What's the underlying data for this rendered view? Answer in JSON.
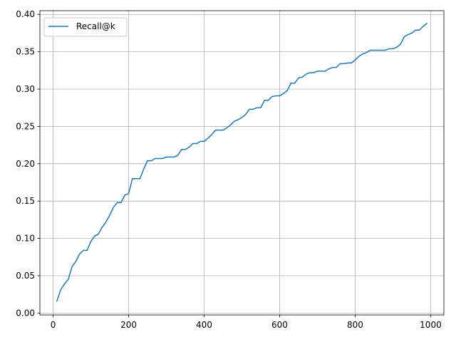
{
  "chart_data": {
    "type": "line",
    "title": "",
    "xlabel": "",
    "ylabel": "",
    "xlim": [
      -35,
      1035
    ],
    "ylim": [
      -0.0025,
      0.405
    ],
    "xticks": [
      0,
      200,
      400,
      600,
      800,
      1000
    ],
    "xtick_labels": [
      "0",
      "200",
      "400",
      "600",
      "800",
      "1000"
    ],
    "yticks": [
      0.0,
      0.05,
      0.1,
      0.15,
      0.2,
      0.25,
      0.3,
      0.35,
      0.4
    ],
    "ytick_labels": [
      "0.00",
      "0.05",
      "0.10",
      "0.15",
      "0.20",
      "0.25",
      "0.30",
      "0.35",
      "0.40"
    ],
    "grid": true,
    "legend_position": "top-left",
    "series": [
      {
        "name": "Recall@k",
        "color": "#1f77b4",
        "x": [
          10,
          20,
          30,
          40,
          50,
          60,
          70,
          80,
          90,
          100,
          110,
          120,
          130,
          140,
          150,
          160,
          170,
          180,
          190,
          200,
          210,
          220,
          230,
          240,
          250,
          260,
          270,
          280,
          290,
          300,
          310,
          320,
          330,
          340,
          350,
          360,
          370,
          380,
          390,
          400,
          410,
          420,
          430,
          440,
          450,
          460,
          470,
          480,
          490,
          500,
          510,
          520,
          530,
          540,
          550,
          560,
          570,
          580,
          590,
          600,
          610,
          620,
          630,
          640,
          650,
          660,
          670,
          680,
          690,
          700,
          710,
          720,
          730,
          740,
          750,
          760,
          770,
          780,
          790,
          800,
          810,
          820,
          830,
          840,
          850,
          860,
          870,
          880,
          890,
          900,
          910,
          920,
          930,
          940,
          950,
          960,
          970,
          980,
          990
        ],
        "y": [
          0.016,
          0.031,
          0.039,
          0.045,
          0.062,
          0.069,
          0.079,
          0.084,
          0.084,
          0.096,
          0.103,
          0.106,
          0.115,
          0.122,
          0.131,
          0.142,
          0.148,
          0.148,
          0.158,
          0.16,
          0.18,
          0.18,
          0.18,
          0.193,
          0.204,
          0.204,
          0.207,
          0.207,
          0.207,
          0.209,
          0.209,
          0.209,
          0.211,
          0.219,
          0.219,
          0.222,
          0.227,
          0.227,
          0.23,
          0.23,
          0.234,
          0.239,
          0.245,
          0.245,
          0.245,
          0.248,
          0.252,
          0.257,
          0.259,
          0.262,
          0.266,
          0.273,
          0.273,
          0.275,
          0.275,
          0.285,
          0.285,
          0.29,
          0.291,
          0.291,
          0.294,
          0.298,
          0.308,
          0.308,
          0.315,
          0.316,
          0.32,
          0.322,
          0.322,
          0.324,
          0.324,
          0.324,
          0.327,
          0.329,
          0.329,
          0.334,
          0.334,
          0.335,
          0.335,
          0.339,
          0.344,
          0.347,
          0.349,
          0.352,
          0.352,
          0.352,
          0.352,
          0.352,
          0.354,
          0.354,
          0.356,
          0.36,
          0.37,
          0.373,
          0.375,
          0.379,
          0.379,
          0.384,
          0.388
        ]
      }
    ]
  }
}
